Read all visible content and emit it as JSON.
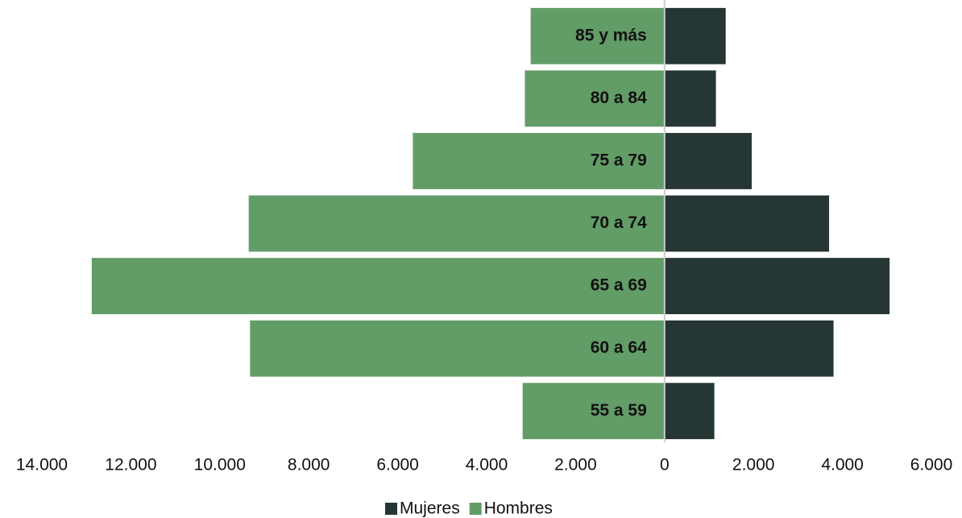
{
  "chart_data": {
    "type": "pyramid",
    "categories": [
      "85 y más",
      "80 a 84",
      "75 a 79",
      "70 a 74",
      "65 a 69",
      "60 a 64",
      "55 a 59"
    ],
    "series": [
      {
        "name": "Mujeres",
        "color": "#253634",
        "values": [
          1375,
          1155,
          1960,
          3700,
          5060,
          3800,
          1120
        ]
      },
      {
        "name": "Hombres",
        "color": "#629c67",
        "values": [
          -3010,
          -3140,
          -5660,
          -9350,
          -12880,
          -9320,
          -3190
        ]
      }
    ],
    "xlim": [
      -14000,
      6000
    ],
    "xticks": [
      {
        "value": -14000,
        "label": "14.000"
      },
      {
        "value": -12000,
        "label": "12.000"
      },
      {
        "value": -10000,
        "label": "10.000"
      },
      {
        "value": -8000,
        "label": "8.000"
      },
      {
        "value": -6000,
        "label": "6.000"
      },
      {
        "value": -4000,
        "label": "4.000"
      },
      {
        "value": -2000,
        "label": "2.000"
      },
      0,
      {
        "value": 2000,
        "label": "2.000"
      },
      {
        "value": 4000,
        "label": "4.000"
      },
      {
        "value": 6000,
        "label": "6.000"
      }
    ],
    "legend": "bottom"
  }
}
